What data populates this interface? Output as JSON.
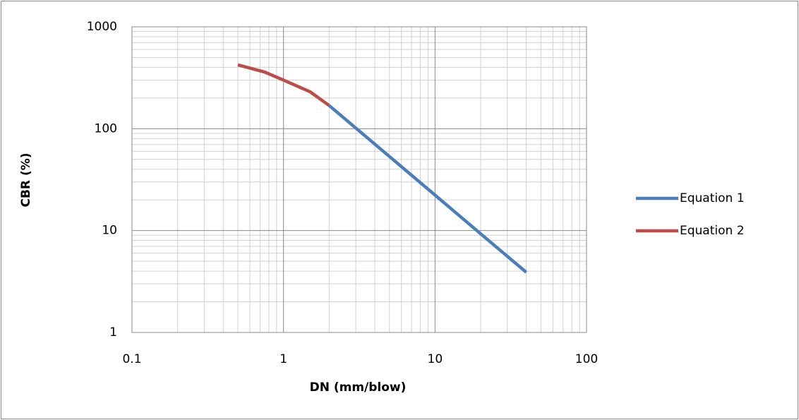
{
  "chart_data": {
    "type": "line",
    "xlabel": "DN (mm/blow)",
    "ylabel": "CBR (%)",
    "xscale": "log",
    "yscale": "log",
    "grid": true,
    "minor_grid": true,
    "legend": "right",
    "xlim": [
      0.1,
      100
    ],
    "xticks": [
      0.1,
      1,
      10,
      100
    ],
    "ylim": [
      1,
      1000
    ],
    "yticks": [
      1,
      10,
      100,
      1000
    ],
    "series": [
      {
        "name": "Equation 1",
        "color": "#4a7ebb",
        "x": [
          2,
          5,
          10,
          20,
          40
        ],
        "values": [
          169,
          53.4,
          22.3,
          9.3,
          3.9
        ]
      },
      {
        "name": "Equation 2",
        "color": "#be4b48",
        "x": [
          0.5,
          0.75,
          1,
          1.5,
          2
        ],
        "values": [
          423,
          360,
          300,
          230,
          169
        ]
      }
    ]
  }
}
